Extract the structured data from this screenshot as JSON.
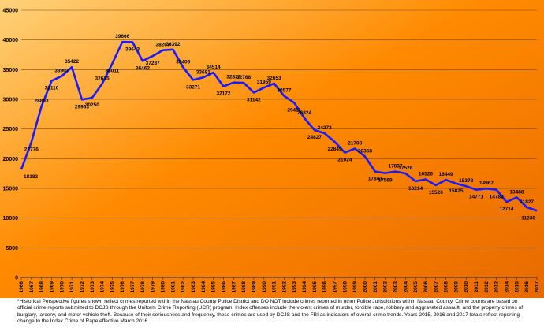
{
  "chart_data": {
    "type": "line",
    "title": "",
    "xlabel": "",
    "ylabel": "",
    "ylim": [
      0,
      45000
    ],
    "yticks": [
      0,
      5000,
      10000,
      15000,
      20000,
      25000,
      30000,
      35000,
      40000,
      45000
    ],
    "grid": true,
    "legend": "none",
    "background": [
      "#ffd27a",
      "#ff8a00",
      "#e86a00"
    ],
    "line_color": "#1a1aff",
    "x": [
      "1966",
      "1967",
      "1968",
      "1969",
      "1970",
      "1971",
      "1972",
      "1973",
      "1974",
      "1975",
      "1976",
      "1977",
      "1978",
      "1979",
      "1980",
      "1981",
      "1982",
      "1983",
      "1984",
      "1985",
      "1986",
      "1987",
      "1988",
      "1989",
      "1990",
      "1991",
      "1992",
      "1993",
      "1994",
      "1995",
      "1996",
      "1997",
      "1998",
      "1999",
      "2000",
      "2001",
      "2002",
      "2003",
      "2004",
      "2005",
      "2006",
      "2007",
      "2008",
      "2009",
      "2010",
      "2011",
      "2012",
      "2013",
      "2014",
      "2015",
      "2016",
      "2017"
    ],
    "values": [
      18183,
      22776,
      28803,
      33110,
      33907,
      35422,
      29963,
      30250,
      32615,
      36011,
      39666,
      39643,
      36462,
      37287,
      38267,
      38392,
      35406,
      33271,
      33681,
      34514,
      32172,
      32823,
      32768,
      31142,
      31959,
      32653,
      30577,
      29411,
      26824,
      24827,
      24273,
      22849,
      21024,
      21708,
      20368,
      17841,
      17569,
      17837,
      17528,
      16214,
      16526,
      15526,
      16449,
      15825,
      15378,
      14771,
      14967,
      14783,
      12714,
      13488,
      11827,
      11230
    ],
    "data_labels": [
      "18183",
      "22776",
      "28803",
      "33110",
      "33907",
      "35422",
      "29963",
      "30250",
      "32615",
      "36011",
      "39666",
      "39643",
      "36462",
      "37287",
      "38267",
      "38392",
      "35406",
      "33271",
      "33681",
      "34514",
      "32172",
      "32823",
      "32768",
      "31142",
      "31959",
      "32653",
      "30577",
      "29411",
      "26824",
      "24827",
      "24273",
      "22849",
      "21024",
      "21708",
      "20368",
      "17841",
      "17569",
      "17837",
      "17528",
      "16214",
      "16526",
      "15526",
      "16449",
      "15825",
      "15378",
      "14771",
      "14967",
      "14783",
      "12714",
      "13488",
      "11827",
      "11230"
    ]
  },
  "footnote": "*Historical Perspective figures shown reflect crimes reported within the Nassau County Police District and DO NOT include crimes reported in other Police Jurisdictions within Nassau County.  Crime counts are based on official crime reports submitted to DCJS through the Uniform Crime Reporting (UCR) program.  Index offenses include the violent crimes of murder, forcible rape, robbery and aggravated assault, and the property crimes of burglary, larceny, and motor vehicle theft.  Because of their seriousness and frequency, these crimes are used by DCJS and the FBI as indicators of overall crime trends.  Years 2015, 2016 and 2017 totals reflect reporting change to the Index Crime of Rape effective March 2016."
}
